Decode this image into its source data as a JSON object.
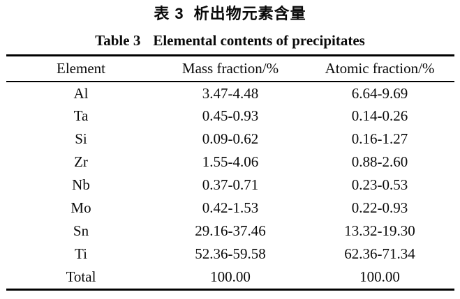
{
  "captions": {
    "zh_label": "表 3",
    "zh_title": "析出物元素含量",
    "en_label": "Table 3",
    "en_title": "Elemental contents of precipitates"
  },
  "colors": {
    "background": "#ffffff",
    "text": "#0a0a0a",
    "rule": "#000000"
  },
  "table": {
    "headers": [
      "Element",
      "Mass fraction/%",
      "Atomic fraction/%"
    ],
    "rows": [
      {
        "element": "Al",
        "mass_fraction": "3.47-4.48",
        "atomic_fraction": "6.64-9.69"
      },
      {
        "element": "Ta",
        "mass_fraction": "0.45-0.93",
        "atomic_fraction": "0.14-0.26"
      },
      {
        "element": "Si",
        "mass_fraction": "0.09-0.62",
        "atomic_fraction": "0.16-1.27"
      },
      {
        "element": "Zr",
        "mass_fraction": "1.55-4.06",
        "atomic_fraction": "0.88-2.60"
      },
      {
        "element": "Nb",
        "mass_fraction": "0.37-0.71",
        "atomic_fraction": "0.23-0.53"
      },
      {
        "element": "Mo",
        "mass_fraction": "0.42-1.53",
        "atomic_fraction": "0.22-0.93"
      },
      {
        "element": "Sn",
        "mass_fraction": "29.16-37.46",
        "atomic_fraction": "13.32-19.30"
      },
      {
        "element": "Ti",
        "mass_fraction": "52.36-59.58",
        "atomic_fraction": "62.36-71.34"
      },
      {
        "element": "Total",
        "mass_fraction": "100.00",
        "atomic_fraction": "100.00"
      }
    ]
  }
}
